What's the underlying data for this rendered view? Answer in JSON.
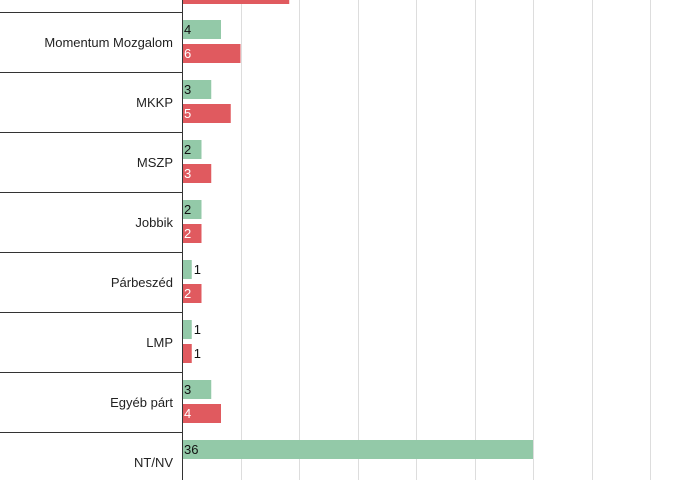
{
  "chart_data": {
    "type": "bar",
    "orientation": "horizontal",
    "categories": [
      "Momentum Mozgalom",
      "MKKP",
      "MSZP",
      "Jobbik",
      "Párbeszéd",
      "LMP",
      "Egyéb párt",
      "NT/NV"
    ],
    "series": [
      {
        "color": "#93c9a8",
        "values": [
          4,
          3,
          2,
          2,
          1,
          1,
          3,
          36
        ]
      },
      {
        "color": "#e05a5f",
        "values": [
          6,
          5,
          3,
          2,
          2,
          1,
          4,
          null
        ]
      }
    ],
    "partial_top_bar": {
      "color": "#e05a5f",
      "value": 11
    },
    "xlim": [
      0,
      60
    ],
    "x_gridline_step": 6,
    "grid": true
  }
}
